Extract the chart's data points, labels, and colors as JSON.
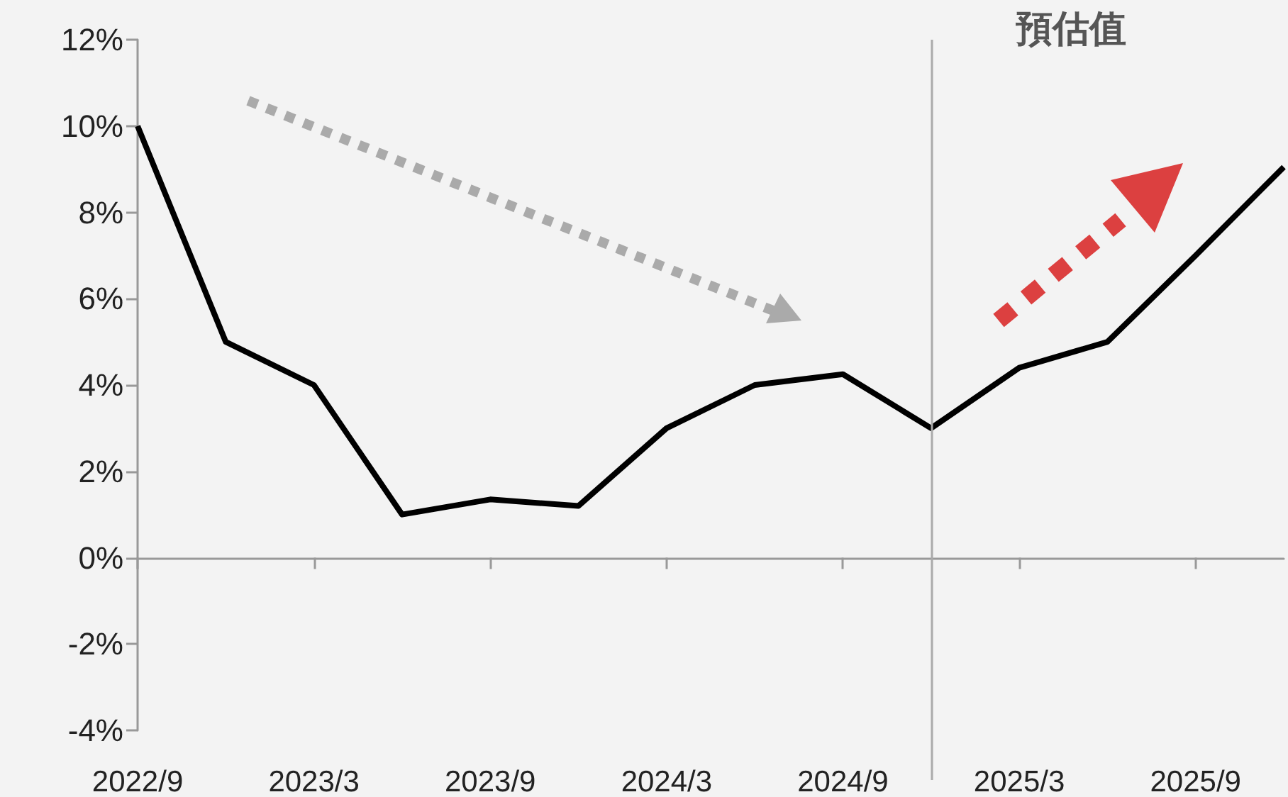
{
  "chart_data": {
    "type": "line",
    "categories": [
      "2022/9",
      null,
      "2023/3",
      null,
      "2023/9",
      null,
      "2024/3",
      null,
      "2024/9",
      null,
      "2025/3",
      null,
      "2025/9",
      null
    ],
    "series": [
      {
        "color": "#000000",
        "values": [
          10.0,
          5.0,
          4.0,
          1.0,
          1.35,
          1.2,
          3.0,
          4.0,
          4.25,
          3.0,
          4.4,
          5.0,
          7.0,
          9.05
        ]
      }
    ],
    "ylim": [
      -4,
      12
    ],
    "yticks": [
      {
        "value": -4,
        "label": "-4%"
      },
      {
        "value": -2,
        "label": "-2%"
      },
      {
        "value": 0,
        "label": "0%"
      },
      {
        "value": 2,
        "label": "2%"
      },
      {
        "value": 4,
        "label": "4%"
      },
      {
        "value": 6,
        "label": "6%"
      },
      {
        "value": 8,
        "label": "8%"
      },
      {
        "value": 10,
        "label": "10%"
      },
      {
        "value": 12,
        "label": "12%"
      }
    ],
    "annotations": [
      "預估值"
    ],
    "grid": false,
    "marker": "none",
    "line_style": "solid"
  }
}
